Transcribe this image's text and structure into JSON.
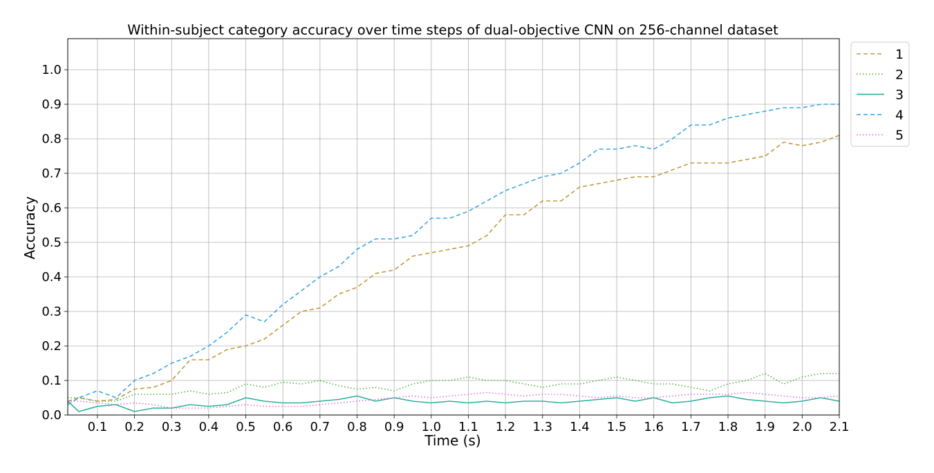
{
  "chart_data": {
    "type": "line",
    "title": "Within-subject category accuracy over time steps of dual-objective CNN on 256-channel dataset",
    "xlabel": "Time (s)",
    "ylabel": "Accuracy",
    "xlim": [
      0.02,
      2.1
    ],
    "ylim": [
      0.0,
      1.09
    ],
    "xticks": [
      "0.1",
      "0.2",
      "0.3",
      "0.4",
      "0.5",
      "0.6",
      "0.7",
      "0.8",
      "0.9",
      "1.0",
      "1.1",
      "1.2",
      "1.3",
      "1.4",
      "1.5",
      "1.6",
      "1.7",
      "1.8",
      "1.9",
      "2.0",
      "2.1"
    ],
    "yticks": [
      "0.0",
      "0.1",
      "0.2",
      "0.3",
      "0.4",
      "0.5",
      "0.6",
      "0.7",
      "0.8",
      "0.9",
      "1.0"
    ],
    "grid": true,
    "legend_position": "outside-top-right",
    "x": [
      0.02,
      0.05,
      0.1,
      0.15,
      0.2,
      0.25,
      0.3,
      0.35,
      0.4,
      0.45,
      0.5,
      0.55,
      0.6,
      0.65,
      0.7,
      0.75,
      0.8,
      0.85,
      0.9,
      0.95,
      1.0,
      1.05,
      1.1,
      1.15,
      1.2,
      1.25,
      1.3,
      1.35,
      1.4,
      1.45,
      1.5,
      1.55,
      1.6,
      1.65,
      1.7,
      1.75,
      1.8,
      1.85,
      1.9,
      1.95,
      2.0,
      2.05,
      2.1
    ],
    "series": [
      {
        "name": "1",
        "color": "#c1983a",
        "dash": "6,4",
        "values": [
          0.04,
          0.05,
          0.04,
          0.045,
          0.075,
          0.08,
          0.1,
          0.16,
          0.16,
          0.19,
          0.2,
          0.22,
          0.26,
          0.3,
          0.31,
          0.35,
          0.37,
          0.41,
          0.42,
          0.46,
          0.47,
          0.48,
          0.49,
          0.52,
          0.58,
          0.58,
          0.62,
          0.62,
          0.66,
          0.67,
          0.68,
          0.69,
          0.69,
          0.71,
          0.73,
          0.73,
          0.73,
          0.74,
          0.75,
          0.79,
          0.78,
          0.79,
          0.81
        ]
      },
      {
        "name": "2",
        "color": "#4cb33f",
        "dash": "1.5,3",
        "values": [
          0.05,
          0.05,
          0.04,
          0.04,
          0.06,
          0.06,
          0.06,
          0.07,
          0.06,
          0.065,
          0.09,
          0.08,
          0.095,
          0.09,
          0.1,
          0.085,
          0.075,
          0.08,
          0.07,
          0.09,
          0.1,
          0.1,
          0.11,
          0.1,
          0.1,
          0.09,
          0.08,
          0.09,
          0.09,
          0.1,
          0.11,
          0.1,
          0.09,
          0.09,
          0.08,
          0.07,
          0.09,
          0.1,
          0.12,
          0.09,
          0.11,
          0.12,
          0.12
        ]
      },
      {
        "name": "3",
        "color": "#2ab19a",
        "dash": "",
        "values": [
          0.04,
          0.01,
          0.025,
          0.03,
          0.01,
          0.02,
          0.02,
          0.03,
          0.025,
          0.03,
          0.05,
          0.04,
          0.035,
          0.035,
          0.04,
          0.045,
          0.055,
          0.04,
          0.05,
          0.04,
          0.035,
          0.04,
          0.035,
          0.04,
          0.035,
          0.04,
          0.04,
          0.035,
          0.04,
          0.045,
          0.05,
          0.04,
          0.05,
          0.035,
          0.04,
          0.05,
          0.055,
          0.045,
          0.04,
          0.035,
          0.04,
          0.05,
          0.04
        ]
      },
      {
        "name": "4",
        "color": "#3aa6e0",
        "dash": "6,4",
        "values": [
          0.03,
          0.05,
          0.07,
          0.05,
          0.1,
          0.12,
          0.15,
          0.17,
          0.2,
          0.24,
          0.29,
          0.27,
          0.32,
          0.36,
          0.4,
          0.43,
          0.48,
          0.51,
          0.51,
          0.52,
          0.57,
          0.57,
          0.59,
          0.62,
          0.65,
          0.67,
          0.69,
          0.7,
          0.73,
          0.77,
          0.77,
          0.78,
          0.77,
          0.8,
          0.84,
          0.84,
          0.86,
          0.87,
          0.88,
          0.89,
          0.89,
          0.9,
          0.9
        ]
      },
      {
        "name": "5",
        "color": "#e26ae0",
        "dash": "1.5,3",
        "values": [
          0.04,
          0.04,
          0.035,
          0.03,
          0.035,
          0.03,
          0.02,
          0.02,
          0.02,
          0.025,
          0.03,
          0.025,
          0.025,
          0.025,
          0.03,
          0.035,
          0.04,
          0.045,
          0.05,
          0.055,
          0.05,
          0.055,
          0.06,
          0.065,
          0.06,
          0.055,
          0.06,
          0.06,
          0.055,
          0.05,
          0.055,
          0.05,
          0.05,
          0.055,
          0.06,
          0.06,
          0.06,
          0.065,
          0.06,
          0.055,
          0.05,
          0.05,
          0.055
        ]
      }
    ]
  }
}
